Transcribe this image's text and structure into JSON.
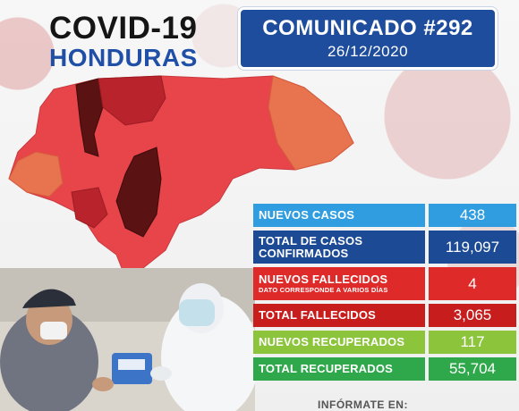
{
  "header": {
    "title": "COVID-19",
    "subtitle": "HONDURAS",
    "communique_title": "COMUNICADO #292",
    "communique_date": "26/12/2020"
  },
  "stats": [
    {
      "label": "NUEVOS CASOS",
      "note": "",
      "value": "438",
      "label_color": "#2f9de0",
      "value_color": "#2f9de0"
    },
    {
      "label": "TOTAL DE CASOS CONFIRMADOS",
      "note": "",
      "value": "119,097",
      "label_color": "#1c4a94",
      "value_color": "#1c4a94"
    },
    {
      "label": "NUEVOS FALLECIDOS",
      "note": "DATO CORRESPONDE A VARIOS DÍAS",
      "value": "4",
      "label_color": "#df2a2a",
      "value_color": "#df2a2a"
    },
    {
      "label": "TOTAL FALLECIDOS",
      "note": "",
      "value": "3,065",
      "label_color": "#c71d1d",
      "value_color": "#c71d1d"
    },
    {
      "label": "NUEVOS RECUPERADOS",
      "note": "",
      "value": "117",
      "label_color": "#8cc43c",
      "value_color": "#8cc43c"
    },
    {
      "label": "TOTAL RECUPERADOS",
      "note": "",
      "value": "55,704",
      "label_color": "#2ea84a",
      "value_color": "#2ea84a"
    }
  ],
  "footer": {
    "text": "INFÓRMATE EN:"
  },
  "colors": {
    "title_blue": "#1f4fa6",
    "communique_bg": "#1e4d9e",
    "map_light": "#e8454b",
    "map_dark": "#5a1212",
    "map_medium": "#b8232c",
    "map_orange": "#e8734f"
  }
}
